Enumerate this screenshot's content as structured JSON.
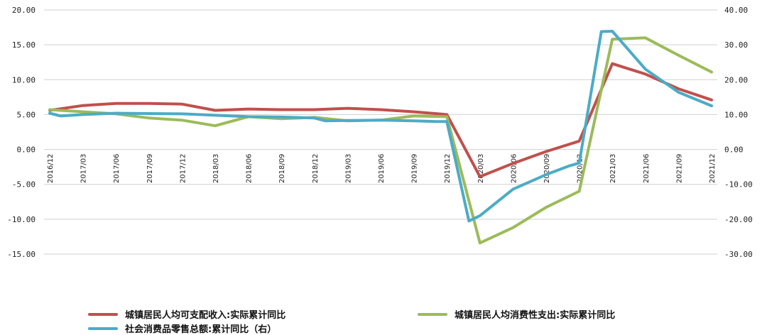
{
  "chart_data": {
    "type": "line",
    "x": [
      "2016/12",
      "2017/03",
      "2017/06",
      "2017/09",
      "2017/12",
      "2018/03",
      "2018/06",
      "2018/09",
      "2018/12",
      "2019/03",
      "2019/06",
      "2019/09",
      "2019/12",
      "2020/03",
      "2020/06",
      "2020/09",
      "2020/12",
      "2021/03",
      "2021/06",
      "2021/09",
      "2021/12"
    ],
    "y_left": {
      "ylim": [
        -15,
        20
      ],
      "ticks": [
        "20.00",
        "15.00",
        "10.00",
        "5.00",
        "0.00",
        "-5.00",
        "-10.00",
        "-15.00"
      ]
    },
    "y_right": {
      "ylim": [
        -30,
        40
      ],
      "ticks": [
        "40.00",
        "30.00",
        "20.00",
        "10.00",
        "0.00",
        "-10.00",
        "-20.00",
        "-30.00"
      ]
    },
    "grid": "horizontal",
    "legend_position": "bottom",
    "series": [
      {
        "name": "城镇居民人均可支配收入:实际累计同比",
        "axis": "left",
        "color": "#c0504d",
        "x": [
          "2016/12",
          "2017/03",
          "2017/06",
          "2017/09",
          "2017/12",
          "2018/03",
          "2018/06",
          "2018/09",
          "2018/12",
          "2019/03",
          "2019/06",
          "2019/09",
          "2019/12",
          "2020/03",
          "2020/06",
          "2020/09",
          "2020/12",
          "2021/03",
          "2021/06",
          "2021/09",
          "2021/12"
        ],
        "values": [
          5.6,
          6.3,
          6.6,
          6.6,
          6.5,
          5.6,
          5.8,
          5.7,
          5.7,
          5.9,
          5.7,
          5.4,
          5.0,
          -3.9,
          -2.0,
          -0.3,
          1.2,
          12.3,
          10.8,
          8.7,
          7.1
        ]
      },
      {
        "name": "城镇居民人均消费性支出:实际累计同比",
        "axis": "left",
        "color": "#9bbb59",
        "x": [
          "2016/12",
          "2017/03",
          "2017/06",
          "2017/09",
          "2017/12",
          "2018/03",
          "2018/06",
          "2018/09",
          "2018/12",
          "2019/03",
          "2019/06",
          "2019/09",
          "2019/12",
          "2020/03",
          "2020/06",
          "2020/09",
          "2020/12",
          "2021/03",
          "2021/06",
          "2021/09",
          "2021/12"
        ],
        "values": [
          5.7,
          5.4,
          5.1,
          4.5,
          4.2,
          3.4,
          4.7,
          4.4,
          4.6,
          4.1,
          4.2,
          4.8,
          4.7,
          -13.4,
          -11.2,
          -8.3,
          -6.0,
          15.8,
          16.0,
          13.5,
          11.1
        ]
      },
      {
        "name": "社会消费品零售总额:累计同比（右）",
        "axis": "right",
        "color": "#4bacc6",
        "x": [
          "2016/12",
          "2017/01",
          "2017/03",
          "2017/06",
          "2017/09",
          "2017/12",
          "2018/03",
          "2018/06",
          "2018/09",
          "2018/12",
          "2019/01",
          "2019/03",
          "2019/06",
          "2019/09",
          "2019/11",
          "2019/12",
          "2020/02",
          "2020/03",
          "2020/06",
          "2020/09",
          "2020/11",
          "2020/12",
          "2021/02",
          "2021/03",
          "2021/06",
          "2021/09",
          "2021/12"
        ],
        "values": [
          10.4,
          9.6,
          10.0,
          10.4,
          10.3,
          10.2,
          9.8,
          9.4,
          9.3,
          9.0,
          8.2,
          8.3,
          8.4,
          8.2,
          8.0,
          8.0,
          -20.5,
          -19.0,
          -11.4,
          -7.2,
          -4.8,
          -3.9,
          33.8,
          33.9,
          23.0,
          16.4,
          12.5
        ]
      }
    ]
  }
}
